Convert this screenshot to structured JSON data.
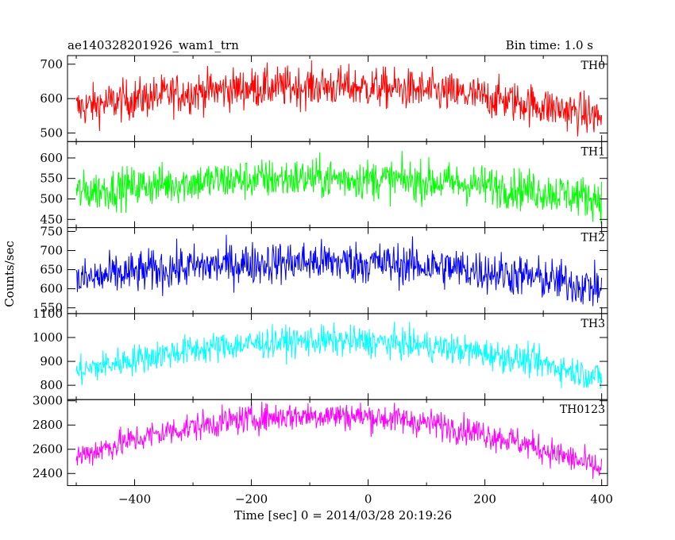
{
  "header": {
    "title": "ae140328201926_wam1_trn",
    "bin_time": "Bin time: 1.0 s"
  },
  "chart_data": {
    "type": "line",
    "xlabel": "Time [sec] 0 = 2014/03/28 20:19:26",
    "ylabel": "Counts/sec",
    "xlim": [
      -515,
      410
    ],
    "x_ticks": [
      -400,
      -200,
      0,
      200,
      400
    ],
    "x_tick_labels": [
      "−400",
      "−200",
      "0",
      "200",
      "400"
    ],
    "x_range": [
      -500,
      400
    ],
    "bin_time_s": 1.0,
    "grid": false,
    "panels": [
      {
        "name": "TH0",
        "color": "#ff0000",
        "ylim": [
          475,
          725
        ],
        "y_ticks": [
          500,
          600,
          700
        ],
        "profile": {
          "edge": 545,
          "peak": 635,
          "peak_x": -90
        },
        "noise": 30
      },
      {
        "name": "TH1",
        "color": "#00ff00",
        "ylim": [
          430,
          640
        ],
        "y_ticks": [
          450,
          500,
          550,
          600
        ],
        "profile": {
          "edge": 500,
          "peak": 550,
          "peak_x": -90
        },
        "noise": 25
      },
      {
        "name": "TH2",
        "color": "#0000ff",
        "ylim": [
          535,
          760
        ],
        "y_ticks": [
          550,
          600,
          650,
          700,
          750
        ],
        "profile": {
          "edge": 600,
          "peak": 670,
          "peak_x": -90
        },
        "noise": 28
      },
      {
        "name": "TH3",
        "color": "#00ffff",
        "ylim": [
          740,
          1100
        ],
        "y_ticks": [
          800,
          900,
          1000,
          1100
        ],
        "profile": {
          "edge": 830,
          "peak": 985,
          "peak_x": -70
        },
        "noise": 32
      },
      {
        "name": "TH0123",
        "color": "#ff00ff",
        "ylim": [
          2300,
          3010
        ],
        "y_ticks": [
          2400,
          2600,
          2800,
          3000
        ],
        "profile": {
          "edge": 2430,
          "peak": 2880,
          "peak_x": -80
        },
        "noise": 60
      }
    ]
  }
}
